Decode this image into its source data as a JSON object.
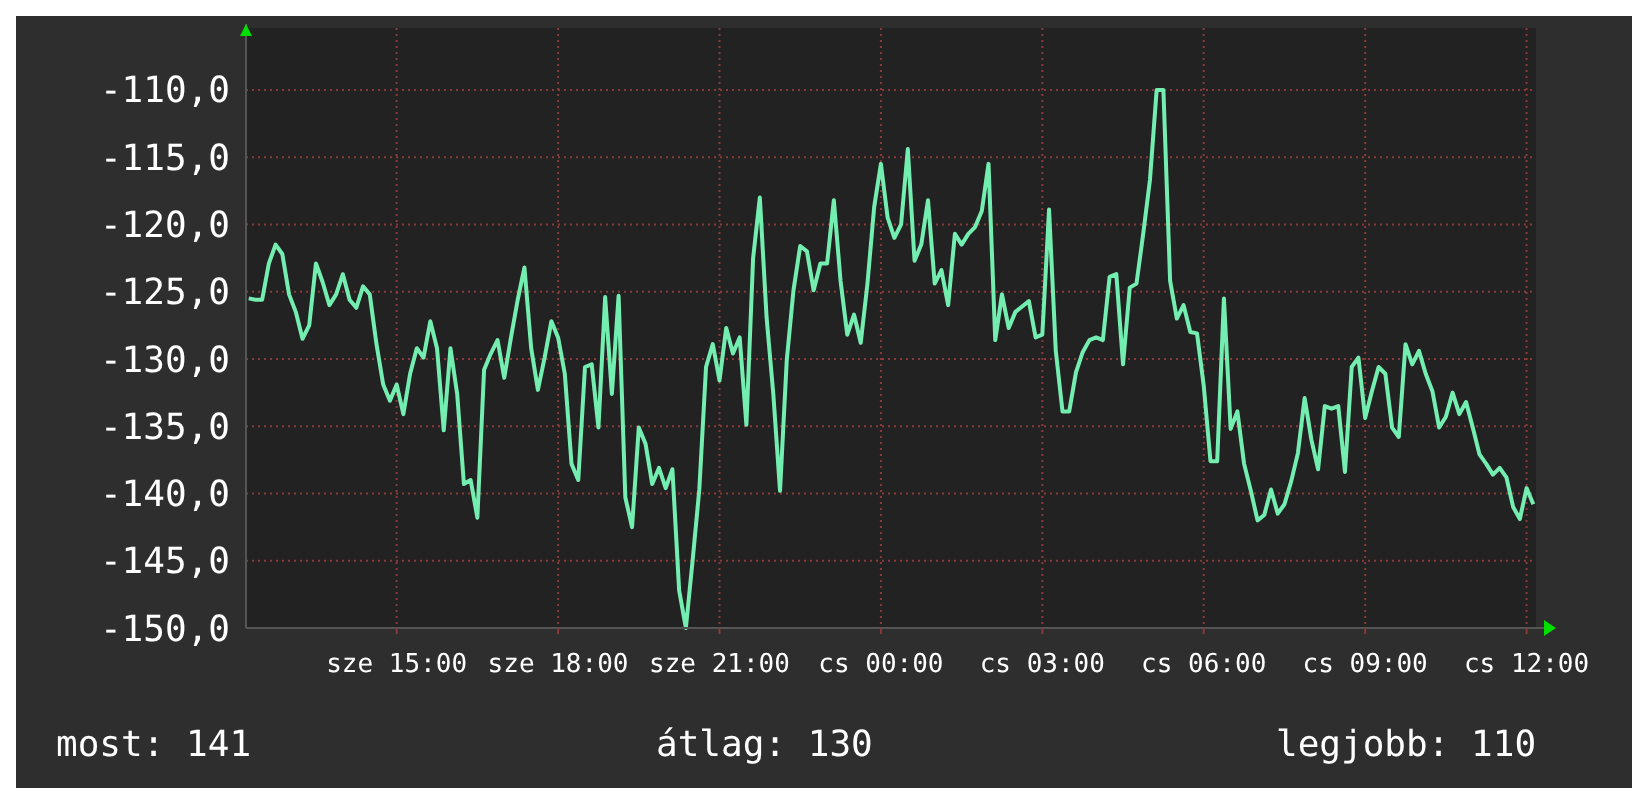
{
  "chart_data": {
    "type": "line",
    "color": "#74eeb0",
    "categories": [
      null,
      null,
      null,
      null,
      null,
      null,
      null,
      null,
      null,
      null,
      null,
      null,
      null,
      null,
      null,
      null,
      null,
      null,
      null,
      null,
      null,
      null,
      "sze 15:00",
      null,
      null,
      null,
      null,
      null,
      null,
      null,
      null,
      null,
      null,
      null,
      null,
      null,
      null,
      null,
      null,
      null,
      null,
      null,
      null,
      null,
      null,
      null,
      "sze 18:00",
      null,
      null,
      null,
      null,
      null,
      null,
      null,
      null,
      null,
      null,
      null,
      null,
      null,
      null,
      null,
      null,
      null,
      null,
      null,
      null,
      null,
      null,
      null,
      "sze 21:00",
      null,
      null,
      null,
      null,
      null,
      null,
      null,
      null,
      null,
      null,
      null,
      null,
      null,
      null,
      null,
      null,
      null,
      null,
      null,
      null,
      null,
      null,
      null,
      "cs 00:00",
      null,
      null,
      null,
      null,
      null,
      null,
      null,
      null,
      null,
      null,
      null,
      null,
      null,
      null,
      null,
      null,
      null,
      null,
      null,
      null,
      null,
      null,
      null,
      "cs 03:00",
      null,
      null,
      null,
      null,
      null,
      null,
      null,
      null,
      null,
      null,
      null,
      null,
      null,
      null,
      null,
      null,
      null,
      null,
      null,
      null,
      null,
      null,
      null,
      "cs 06:00",
      null,
      null,
      null,
      null,
      null,
      null,
      null,
      null,
      null,
      null,
      null,
      null,
      null,
      null,
      null,
      null,
      null,
      null,
      null,
      null,
      null,
      null,
      null,
      "cs 09:00",
      null,
      null,
      null,
      null,
      null,
      null,
      null,
      null,
      null,
      null,
      null,
      null,
      null,
      null,
      null,
      null,
      null,
      null,
      null,
      null,
      null,
      null,
      null,
      "cs 12:00",
      null
    ],
    "values": [
      -125.5,
      -125.6,
      -125.6,
      -122.9,
      -121.5,
      -122.2,
      -125.2,
      -126.5,
      -128.5,
      -127.5,
      -122.9,
      -124.3,
      -126.0,
      -125.2,
      -123.7,
      -125.6,
      -126.2,
      -124.6,
      -125.2,
      -128.9,
      -131.9,
      -133.1,
      -131.9,
      -134.1,
      -131.1,
      -129.2,
      -129.9,
      -127.2,
      -129.2,
      -135.3,
      -129.2,
      -132.6,
      -139.3,
      -139.0,
      -141.8,
      -130.8,
      -129.6,
      -128.6,
      -131.4,
      -128.4,
      -125.6,
      -123.2,
      -129.2,
      -132.3,
      -129.9,
      -127.2,
      -128.4,
      -131.1,
      -137.8,
      -139.0,
      -130.6,
      -130.4,
      -135.1,
      -125.4,
      -132.6,
      -125.3,
      -140.3,
      -142.5,
      -135.1,
      -136.3,
      -139.3,
      -138.1,
      -139.6,
      -138.2,
      -147.2,
      -150.0,
      -145.0,
      -139.7,
      -130.6,
      -128.9,
      -131.6,
      -127.7,
      -129.6,
      -128.4,
      -134.9,
      -122.5,
      -118.0,
      -126.9,
      -132.6,
      -139.8,
      -130.1,
      -124.9,
      -121.6,
      -122.0,
      -124.9,
      -122.9,
      -122.9,
      -118.2,
      -124.2,
      -128.2,
      -126.7,
      -128.8,
      -124.4,
      -118.7,
      -115.5,
      -119.5,
      -121.0,
      -120.0,
      -114.4,
      -122.7,
      -121.5,
      -118.2,
      -124.4,
      -123.4,
      -126.0,
      -120.7,
      -121.5,
      -120.7,
      -120.2,
      -119.0,
      -115.5,
      -128.6,
      -125.2,
      -127.7,
      -126.5,
      -126.1,
      -125.7,
      -128.4,
      -128.2,
      -118.9,
      -129.4,
      -133.9,
      -133.9,
      -131.0,
      -129.5,
      -128.6,
      -128.4,
      -128.6,
      -123.9,
      -123.7,
      -130.4,
      -124.7,
      -124.4,
      -120.7,
      -116.7,
      -110.0,
      -110.0,
      -124.2,
      -127.0,
      -126.0,
      -128.0,
      -128.1,
      -132.0,
      -137.6,
      -137.6,
      -125.5,
      -135.2,
      -133.9,
      -137.8,
      -139.8,
      -142.0,
      -141.6,
      -139.7,
      -141.5,
      -140.8,
      -139.1,
      -137.0,
      -132.9,
      -136.0,
      -138.2,
      -133.5,
      -133.7,
      -133.5,
      -138.4,
      -130.6,
      -129.9,
      -134.4,
      -132.4,
      -130.6,
      -131.1,
      -135.1,
      -135.8,
      -128.9,
      -130.4,
      -129.4,
      -131.1,
      -132.4,
      -135.1,
      -134.3,
      -132.5,
      -134.1,
      -133.2,
      -135.1,
      -137.1,
      -137.8,
      -138.6,
      -138.1,
      -138.8,
      -141.0,
      -141.9,
      -139.6,
      -140.8
    ],
    "ylim": [
      -150,
      -105.4
    ],
    "yticks": [
      {
        "value": -150,
        "label": "-150,0"
      },
      {
        "value": -145,
        "label": "-145,0"
      },
      {
        "value": -140,
        "label": "-140,0"
      },
      {
        "value": -135,
        "label": "-135,0"
      },
      {
        "value": -130,
        "label": "-130,0"
      },
      {
        "value": -125,
        "label": "-125,0"
      },
      {
        "value": -120,
        "label": "-120,0"
      },
      {
        "value": -115,
        "label": "-115,0"
      },
      {
        "value": -110,
        "label": "-110,0"
      }
    ],
    "grid": true,
    "annotations": [
      "most: 141",
      "átlag: 130",
      "legjobb: 110"
    ]
  }
}
